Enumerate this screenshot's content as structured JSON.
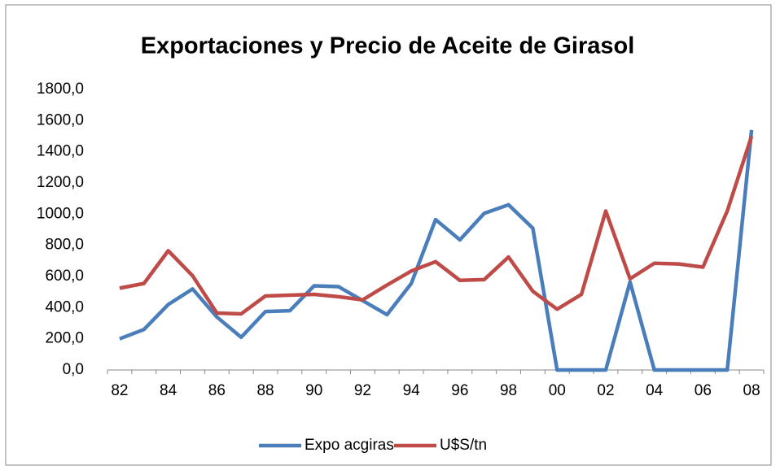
{
  "chart_data": {
    "type": "line",
    "title": "Exportaciones y Precio de Aceite de Girasol",
    "categories": [
      "82",
      null,
      "84",
      null,
      "86",
      null,
      "88",
      null,
      "90",
      null,
      "92",
      null,
      "94",
      null,
      "96",
      null,
      "98",
      null,
      "00",
      null,
      "02",
      null,
      "04",
      null,
      "06",
      null,
      "08"
    ],
    "series": [
      {
        "name": "Expo acgiras",
        "color": "#4a7ebb",
        "values": [
          200,
          260,
          420,
          520,
          340,
          210,
          375,
          380,
          540,
          535,
          445,
          355,
          555,
          965,
          835,
          1005,
          1060,
          910,
          0,
          0,
          0,
          565,
          0,
          0,
          0,
          0,
          1540
        ]
      },
      {
        "name": "U$S/tn",
        "color": "#be4b48",
        "values": [
          525,
          555,
          765,
          605,
          365,
          360,
          475,
          480,
          485,
          470,
          450,
          545,
          635,
          695,
          575,
          580,
          725,
          505,
          390,
          485,
          1020,
          585,
          685,
          680,
          660,
          1020,
          1500
        ]
      }
    ],
    "ylim": [
      0,
      1800
    ],
    "yticks": [
      {
        "value": 0,
        "label": "0,0"
      },
      {
        "value": 200,
        "label": "200,0"
      },
      {
        "value": 400,
        "label": "400,0"
      },
      {
        "value": 600,
        "label": "600,0"
      },
      {
        "value": 800,
        "label": "800,0"
      },
      {
        "value": 1000,
        "label": "1000,0"
      },
      {
        "value": 1200,
        "label": "1200,0"
      },
      {
        "value": 1400,
        "label": "1400,0"
      },
      {
        "value": 1600,
        "label": "1600,0"
      },
      {
        "value": 1800,
        "label": "1800,0"
      }
    ],
    "legend": "bottom"
  }
}
